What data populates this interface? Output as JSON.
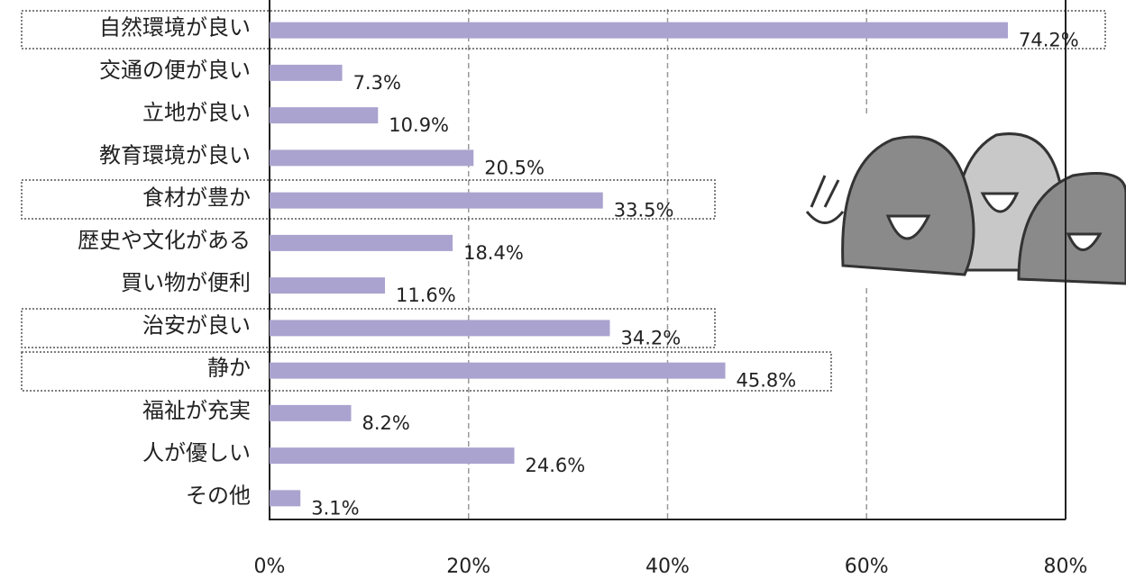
{
  "chart_data": {
    "type": "bar",
    "orientation": "horizontal",
    "categories": [
      "自然環境が良い",
      "交通の便が良い",
      "立地が良い",
      "教育環境が良い",
      "食材が豊か",
      "歴史や文化がある",
      "買い物が便利",
      "治安が良い",
      "静か",
      "福祉が充実",
      "人が優しい",
      "その他"
    ],
    "values": [
      74.2,
      7.3,
      10.9,
      20.5,
      33.5,
      18.4,
      11.6,
      34.2,
      45.8,
      8.2,
      24.6,
      3.1
    ],
    "value_labels": [
      "74.2%",
      "7.3%",
      "10.9%",
      "20.5%",
      "33.5%",
      "18.4%",
      "11.6%",
      "34.2%",
      "45.8%",
      "8.2%",
      "24.6%",
      "3.1%"
    ],
    "color": "#aaa3cf",
    "xlim": [
      0,
      80
    ],
    "xticks": [
      {
        "value": 0,
        "label": "0%"
      },
      {
        "value": 20,
        "label": "20%"
      },
      {
        "value": 40,
        "label": "40%"
      },
      {
        "value": 60,
        "label": "60%"
      },
      {
        "value": 80,
        "label": "80%"
      }
    ],
    "grid": true
  }
}
